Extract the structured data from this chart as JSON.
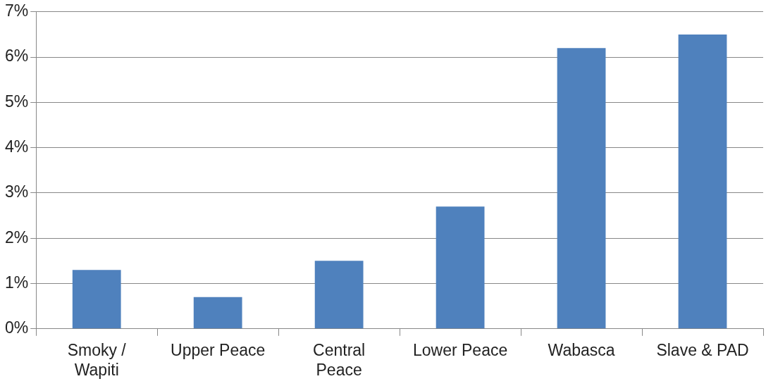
{
  "chart_data": {
    "type": "bar",
    "categories": [
      "Smoky / Wapiti",
      "Upper Peace",
      "Central Peace",
      "Lower Peace",
      "Wabasca",
      "Slave & PAD"
    ],
    "values": [
      1.3,
      0.7,
      1.5,
      2.7,
      6.2,
      6.5
    ],
    "color": "#4f81bd",
    "ylim": [
      0,
      7
    ],
    "yticks": [
      {
        "value": 0,
        "label": "0%"
      },
      {
        "value": 1,
        "label": "1%"
      },
      {
        "value": 2,
        "label": "2%"
      },
      {
        "value": 3,
        "label": "3%"
      },
      {
        "value": 4,
        "label": "4%"
      },
      {
        "value": 5,
        "label": "5%"
      },
      {
        "value": 6,
        "label": "6%"
      },
      {
        "value": 7,
        "label": "7%"
      }
    ],
    "grid": "y",
    "legend": false
  }
}
